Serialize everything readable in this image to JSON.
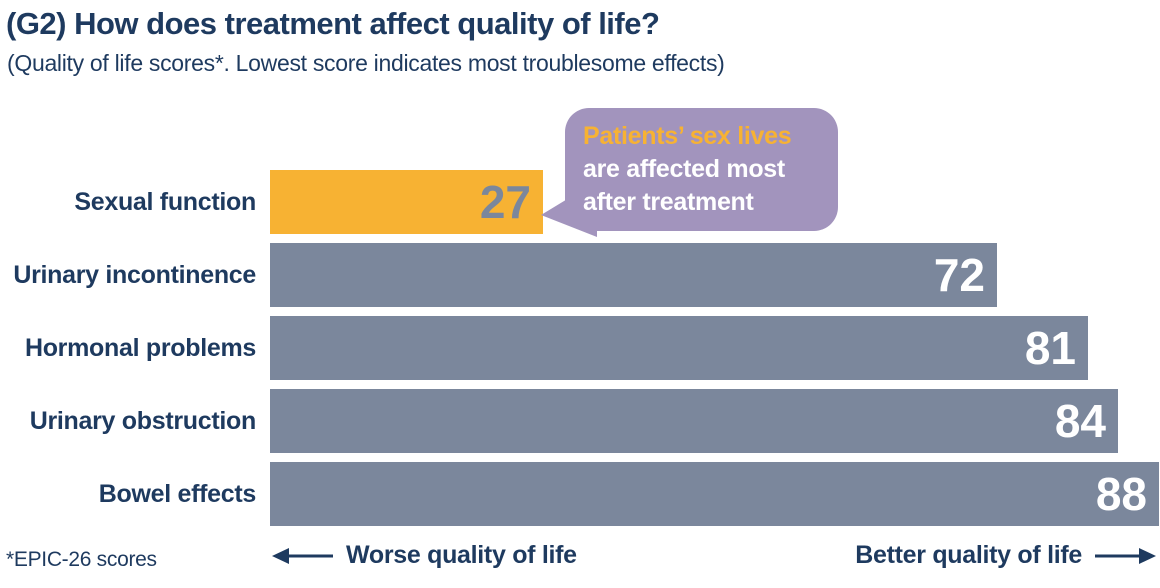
{
  "title": "(G2) How does treatment affect quality of life?",
  "subtitle": "(Quality of life scores*. Lowest score indicates most troublesome effects)",
  "callout": {
    "highlight_line": "Patients’ sex lives",
    "line2": "are affected most",
    "line3": "after treatment"
  },
  "footnote": "*EPIC-26 scores",
  "axis": {
    "left_label": "Worse quality of life",
    "right_label": "Better quality of life"
  },
  "colors": {
    "navy": "#1e3a5f",
    "bar": "#7b879c",
    "highlight_bar": "#f7b233",
    "callout_bg": "#a294bd",
    "callout_highlight_text": "#f7b233",
    "value_text": "#ffffff",
    "highlight_value_text": "#7b879c"
  },
  "chart_data": {
    "type": "bar",
    "orientation": "horizontal",
    "title": "(G2) How does treatment affect quality of life?",
    "subtitle": "(Quality of life scores*. Lowest score indicates most troublesome effects)",
    "categories": [
      "Sexual function",
      "Urinary incontinence",
      "Hormonal problems",
      "Urinary obstruction",
      "Bowel effects"
    ],
    "values": [
      27,
      72,
      81,
      84,
      88
    ],
    "xlim": [
      0,
      100
    ],
    "highlight_index": 0,
    "value_labels_shown": true,
    "grid": false,
    "annotation": "Patients’ sex lives are affected most after treatment",
    "x_direction_labels": {
      "left": "Worse quality of life",
      "right": "Better quality of life"
    },
    "footnote": "*EPIC-26 scores"
  }
}
